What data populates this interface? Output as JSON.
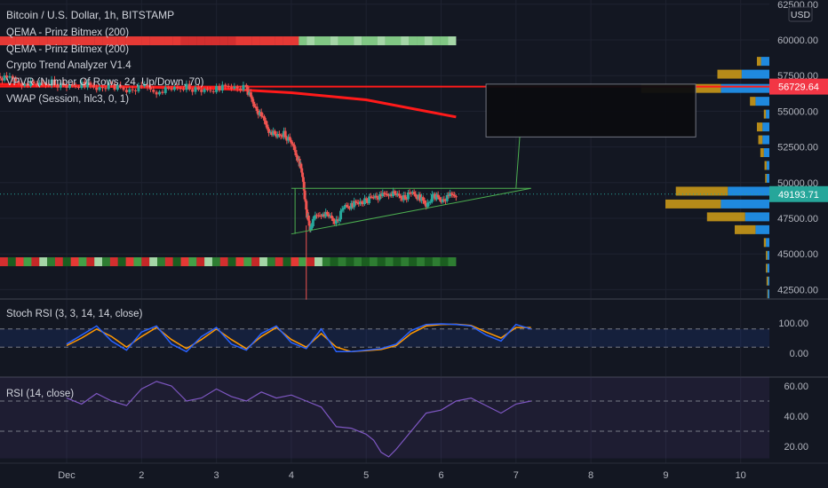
{
  "header": {
    "title": "Bitcoin / U.S. Dollar, 1h, BITSTAMP",
    "indicators": [
      "QEMA - Prinz Bitmex (200)",
      "QEMA - Prinz Bitmex (200)",
      "Crypto Trend Analyzer V1.4",
      "VPVR (Number Of Rows, 24, Up/Down, 70)",
      "VWAP (Session, hlc3, 0, 1)"
    ]
  },
  "price_axis": {
    "currency": "USD",
    "ticks": [
      "62500.00",
      "60000.00",
      "57500.00",
      "55000.00",
      "52500.00",
      "50000.00",
      "47500.00",
      "45000.00",
      "42500.00"
    ],
    "current_price": "49193.71",
    "current_price_color": "#26a69a",
    "marker_price": "56729.64",
    "marker_color": "#f23645"
  },
  "time_axis": {
    "labels": [
      "Dec",
      "2",
      "3",
      "4",
      "5",
      "6",
      "7",
      "8",
      "9",
      "10"
    ]
  },
  "stoch_panel": {
    "title": "Stoch RSI (3, 3, 14, 14, close)",
    "ticks": [
      "100.00",
      "0.00"
    ]
  },
  "rsi_panel": {
    "title": "RSI (14, close)",
    "ticks": [
      "60.00",
      "40.00",
      "20.00"
    ]
  },
  "colors": {
    "background": "#131722",
    "grid": "#1e2230",
    "up": "#26a69a",
    "down": "#ef5350",
    "ema": "#ff1a1a",
    "k_line": "#2962ff",
    "d_line": "#ff9800",
    "rsi_line": "#7e57c2",
    "triangle": "#4caf50",
    "vp_up": "#2196f3",
    "vp_down": "#d4a017"
  },
  "chart_data": {
    "type": "candlestick",
    "symbol": "BTCUSD",
    "interval": "1h",
    "price_range": [
      41800,
      62800
    ],
    "time_range_days": [
      "Nov 30",
      "Dec 10"
    ],
    "price_path": [
      [
        0.05,
        57500
      ],
      [
        0.2,
        57300
      ],
      [
        0.4,
        57000
      ],
      [
        0.6,
        56800
      ],
      [
        0.8,
        57000
      ],
      [
        1.0,
        56700
      ],
      [
        1.2,
        56900
      ],
      [
        1.4,
        56600
      ],
      [
        1.6,
        56800
      ],
      [
        1.8,
        56500
      ],
      [
        2.0,
        56700
      ],
      [
        2.2,
        56400
      ],
      [
        2.4,
        56500
      ],
      [
        2.6,
        56700
      ],
      [
        2.8,
        56400
      ],
      [
        3.0,
        56600
      ],
      [
        3.2,
        56700
      ],
      [
        3.4,
        56600
      ],
      [
        3.5,
        55500
      ],
      [
        3.6,
        54600
      ],
      [
        3.7,
        53700
      ],
      [
        3.8,
        53200
      ],
      [
        3.9,
        53400
      ],
      [
        4.0,
        52800
      ],
      [
        4.1,
        51500
      ],
      [
        4.15,
        50500
      ],
      [
        4.2,
        48000
      ],
      [
        4.25,
        46800
      ],
      [
        4.3,
        47400
      ],
      [
        4.4,
        47900
      ],
      [
        4.5,
        47600
      ],
      [
        4.6,
        47200
      ],
      [
        4.7,
        48300
      ],
      [
        4.8,
        48400
      ],
      [
        4.9,
        48600
      ],
      [
        5.0,
        48700
      ],
      [
        5.1,
        49100
      ],
      [
        5.2,
        49000
      ],
      [
        5.3,
        49300
      ],
      [
        5.4,
        49100
      ],
      [
        5.5,
        48900
      ],
      [
        5.6,
        49300
      ],
      [
        5.7,
        49000
      ],
      [
        5.8,
        48400
      ],
      [
        5.9,
        49100
      ],
      [
        6.0,
        48800
      ],
      [
        6.1,
        49000
      ],
      [
        6.2,
        49193
      ]
    ],
    "extreme_wick_low": 41800,
    "ema_200": [
      [
        0.0,
        56900
      ],
      [
        2.0,
        56700
      ],
      [
        3.0,
        56600
      ],
      [
        4.0,
        56300
      ],
      [
        5.0,
        55800
      ],
      [
        6.2,
        54600
      ]
    ],
    "horizontal_level": 56729.64,
    "triangle": {
      "upper": [
        [
          4.0,
          49600
        ],
        [
          7.2,
          49600
        ]
      ],
      "lower": [
        [
          4.0,
          46400
        ],
        [
          7.2,
          49600
        ]
      ]
    },
    "projection_box": {
      "from_day": 6.6,
      "to_day": 9.4,
      "top": 56900,
      "bottom": 53200
    },
    "volume_profile": [
      {
        "price": 58500,
        "up": 12,
        "down": 6
      },
      {
        "price": 57600,
        "up": 40,
        "down": 35
      },
      {
        "price": 56600,
        "up": 70,
        "down": 115
      },
      {
        "price": 55700,
        "up": 20,
        "down": 8
      },
      {
        "price": 54800,
        "up": 5,
        "down": 3
      },
      {
        "price": 53900,
        "up": 10,
        "down": 8
      },
      {
        "price": 53000,
        "up": 10,
        "down": 6
      },
      {
        "price": 52100,
        "up": 8,
        "down": 5
      },
      {
        "price": 51200,
        "up": 4,
        "down": 3
      },
      {
        "price": 50300,
        "up": 4,
        "down": 2
      },
      {
        "price": 49400,
        "up": 60,
        "down": 75
      },
      {
        "price": 48500,
        "up": 70,
        "down": 80
      },
      {
        "price": 47600,
        "up": 35,
        "down": 55
      },
      {
        "price": 46700,
        "up": 20,
        "down": 30
      },
      {
        "price": 45800,
        "up": 5,
        "down": 3
      },
      {
        "price": 44900,
        "up": 3,
        "down": 2
      },
      {
        "price": 44000,
        "up": 3,
        "down": 2
      },
      {
        "price": 43100,
        "up": 2,
        "down": 2
      },
      {
        "price": 42200,
        "up": 2,
        "down": 1
      }
    ],
    "stoch_rsi": {
      "range": [
        0,
        100
      ],
      "k": [
        [
          0,
          30
        ],
        [
          0.2,
          60
        ],
        [
          0.4,
          90
        ],
        [
          0.6,
          40
        ],
        [
          0.8,
          10
        ],
        [
          1.0,
          70
        ],
        [
          1.2,
          90
        ],
        [
          1.4,
          30
        ],
        [
          1.6,
          5
        ],
        [
          1.8,
          55
        ],
        [
          2.0,
          85
        ],
        [
          2.2,
          30
        ],
        [
          2.4,
          10
        ],
        [
          2.6,
          65
        ],
        [
          2.8,
          90
        ],
        [
          3.0,
          35
        ],
        [
          3.2,
          15
        ],
        [
          3.4,
          80
        ],
        [
          3.6,
          5
        ],
        [
          3.8,
          5
        ],
        [
          4.0,
          10
        ],
        [
          4.2,
          15
        ],
        [
          4.4,
          30
        ],
        [
          4.6,
          75
        ],
        [
          4.8,
          95
        ],
        [
          5.0,
          97
        ],
        [
          5.2,
          95
        ],
        [
          5.4,
          90
        ],
        [
          5.6,
          60
        ],
        [
          5.8,
          40
        ],
        [
          6.0,
          95
        ],
        [
          6.2,
          80
        ]
      ],
      "d": [
        [
          0,
          25
        ],
        [
          0.2,
          50
        ],
        [
          0.4,
          80
        ],
        [
          0.6,
          55
        ],
        [
          0.8,
          20
        ],
        [
          1.0,
          55
        ],
        [
          1.2,
          85
        ],
        [
          1.4,
          45
        ],
        [
          1.6,
          15
        ],
        [
          1.8,
          45
        ],
        [
          2.0,
          80
        ],
        [
          2.2,
          45
        ],
        [
          2.4,
          15
        ],
        [
          2.6,
          55
        ],
        [
          2.8,
          85
        ],
        [
          3.0,
          45
        ],
        [
          3.2,
          20
        ],
        [
          3.4,
          65
        ],
        [
          3.6,
          20
        ],
        [
          3.8,
          5
        ],
        [
          4.0,
          8
        ],
        [
          4.2,
          12
        ],
        [
          4.4,
          25
        ],
        [
          4.6,
          65
        ],
        [
          4.8,
          90
        ],
        [
          5.0,
          95
        ],
        [
          5.2,
          96
        ],
        [
          5.4,
          92
        ],
        [
          5.6,
          70
        ],
        [
          5.8,
          50
        ],
        [
          6.0,
          85
        ],
        [
          6.2,
          85
        ]
      ],
      "bands": [
        80,
        20
      ]
    },
    "rsi": {
      "range": [
        12,
        66
      ],
      "values": [
        [
          0,
          52
        ],
        [
          0.2,
          48
        ],
        [
          0.4,
          55
        ],
        [
          0.6,
          50
        ],
        [
          0.8,
          47
        ],
        [
          1.0,
          58
        ],
        [
          1.2,
          63
        ],
        [
          1.4,
          60
        ],
        [
          1.6,
          50
        ],
        [
          1.8,
          52
        ],
        [
          2.0,
          58
        ],
        [
          2.2,
          53
        ],
        [
          2.4,
          50
        ],
        [
          2.6,
          56
        ],
        [
          2.8,
          52
        ],
        [
          3.0,
          54
        ],
        [
          3.2,
          50
        ],
        [
          3.4,
          46
        ],
        [
          3.6,
          33
        ],
        [
          3.8,
          32
        ],
        [
          4.0,
          28
        ],
        [
          4.1,
          24
        ],
        [
          4.2,
          16
        ],
        [
          4.3,
          13
        ],
        [
          4.4,
          18
        ],
        [
          4.6,
          30
        ],
        [
          4.8,
          42
        ],
        [
          5.0,
          44
        ],
        [
          5.2,
          50
        ],
        [
          5.4,
          52
        ],
        [
          5.6,
          47
        ],
        [
          5.8,
          42
        ],
        [
          6.0,
          48
        ],
        [
          6.2,
          50
        ]
      ],
      "bands": [
        50,
        30
      ]
    }
  }
}
